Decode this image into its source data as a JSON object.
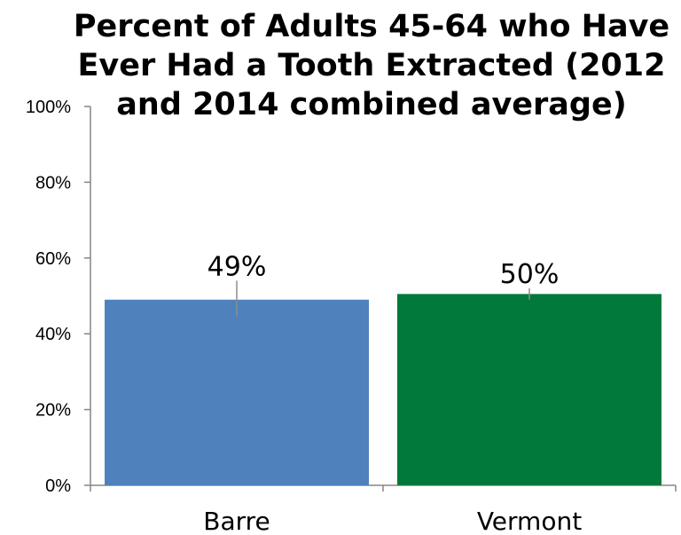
{
  "chart_data": {
    "type": "bar",
    "title": "Percent of Adults 45-64 who Have Ever Had a Tooth Extracted (2012 and 2014 combined average)",
    "categories": [
      "Barre",
      "Vermont"
    ],
    "values": [
      49,
      50.5
    ],
    "data_labels": [
      "49%",
      "50%"
    ],
    "error_bars": [
      {
        "low": 44.5,
        "high": 54
      },
      {
        "low": 49,
        "high": 52
      }
    ],
    "colors": [
      "#4f81bd",
      "#00793a"
    ],
    "ylim": [
      0,
      100
    ],
    "yticks": [
      0,
      20,
      40,
      60,
      80,
      100
    ],
    "ytick_labels": [
      "0%",
      "20%",
      "40%",
      "60%",
      "80%",
      "100%"
    ],
    "xlabel": "",
    "ylabel": "",
    "grid": false,
    "legend": "none"
  }
}
